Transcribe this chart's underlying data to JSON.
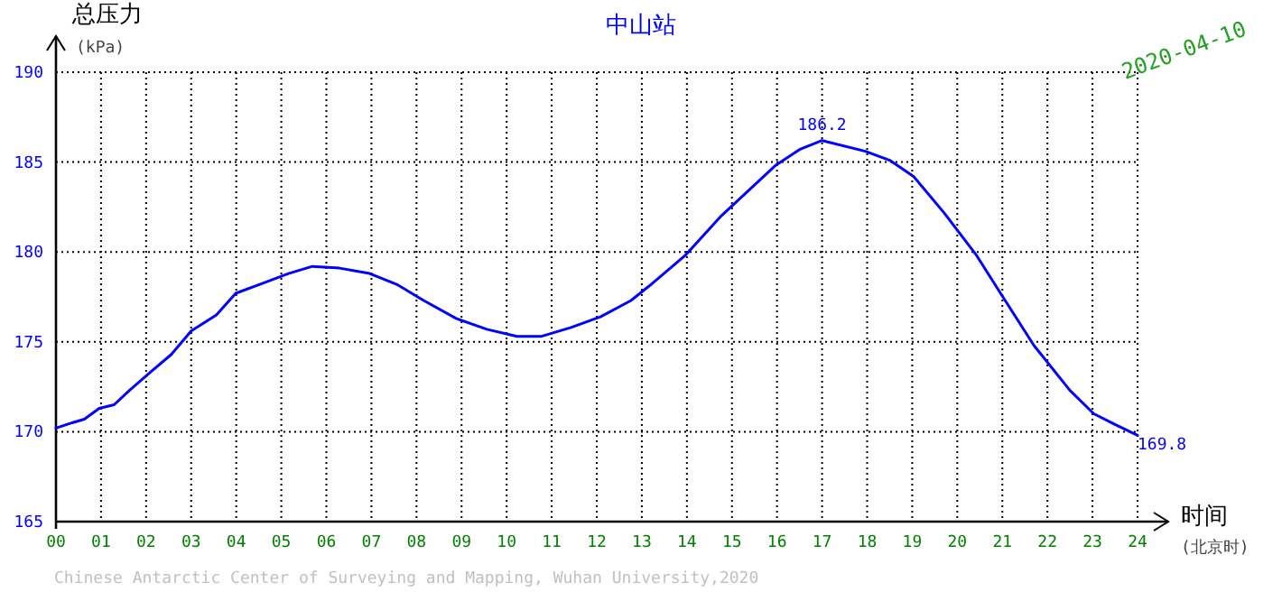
{
  "chart_data": {
    "type": "line",
    "title": "中山站",
    "xlabel": "时间 (北京时)",
    "ylabel": "总压力 (kPa)",
    "grid": true,
    "xlim": [
      0,
      24
    ],
    "ylim": [
      165,
      190
    ],
    "xticks": [
      {
        "value": 0,
        "label": "00"
      },
      {
        "value": 1,
        "label": "01"
      },
      {
        "value": 2,
        "label": "02"
      },
      {
        "value": 3,
        "label": "03"
      },
      {
        "value": 4,
        "label": "04"
      },
      {
        "value": 5,
        "label": "05"
      },
      {
        "value": 6,
        "label": "06"
      },
      {
        "value": 7,
        "label": "07"
      },
      {
        "value": 8,
        "label": "08"
      },
      {
        "value": 9,
        "label": "09"
      },
      {
        "value": 10,
        "label": "10"
      },
      {
        "value": 11,
        "label": "11"
      },
      {
        "value": 12,
        "label": "12"
      },
      {
        "value": 13,
        "label": "13"
      },
      {
        "value": 14,
        "label": "14"
      },
      {
        "value": 15,
        "label": "15"
      },
      {
        "value": 16,
        "label": "16"
      },
      {
        "value": 17,
        "label": "17"
      },
      {
        "value": 18,
        "label": "18"
      },
      {
        "value": 19,
        "label": "19"
      },
      {
        "value": 20,
        "label": "20"
      },
      {
        "value": 21,
        "label": "21"
      },
      {
        "value": 22,
        "label": "22"
      },
      {
        "value": 23,
        "label": "23"
      },
      {
        "value": 24,
        "label": "24"
      }
    ],
    "yticks": [
      165,
      170,
      175,
      180,
      185,
      190
    ],
    "series": [
      {
        "color": "#0000ff",
        "x": [
          0,
          0.36,
          0.63,
          0.96,
          1.29,
          1.63,
          2.09,
          2.56,
          3.0,
          3.56,
          3.99,
          4.63,
          5.16,
          5.69,
          6.29,
          6.96,
          7.56,
          8.16,
          8.88,
          9.56,
          10.23,
          10.76,
          11.43,
          12.09,
          12.76,
          13.16,
          13.96,
          14.76,
          15.96,
          16.5,
          17.0,
          17.96,
          18.5,
          19.03,
          19.7,
          20.43,
          20.96,
          21.7,
          22.5,
          23.03,
          23.5,
          24
        ],
        "values": [
          170.2,
          170.5,
          170.7,
          171.3,
          171.5,
          172.3,
          173.3,
          174.3,
          175.6,
          176.5,
          177.7,
          178.3,
          178.8,
          179.2,
          179.1,
          178.8,
          178.2,
          177.3,
          176.3,
          175.7,
          175.3,
          175.3,
          175.8,
          176.4,
          177.3,
          178.1,
          179.8,
          182.0,
          184.8,
          185.7,
          186.2,
          185.6,
          185.1,
          184.2,
          182.2,
          179.8,
          177.7,
          174.8,
          172.3,
          171.0,
          170.4,
          169.8
        ]
      }
    ],
    "annotations": [
      {
        "text": "186.2",
        "x": 17,
        "y": 186.2
      },
      {
        "text": "169.8",
        "x": 24,
        "y": 169.8
      },
      "2020-04-10",
      "Chinese Antarctic Center of Surveying and Mapping, Wuhan University,2020"
    ]
  }
}
